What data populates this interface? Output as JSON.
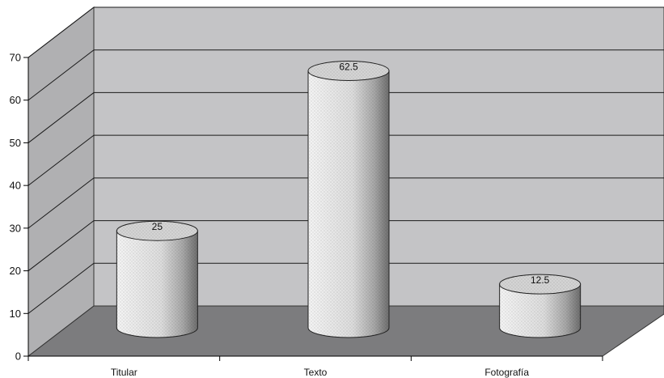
{
  "chart_data": {
    "type": "bar",
    "style": "3d-cylinder",
    "categories": [
      "Titular",
      "Texto",
      "Fotografía"
    ],
    "values": [
      25,
      62.5,
      12.5
    ],
    "data_labels": [
      "25",
      "62.5",
      "12.5"
    ],
    "ylim": [
      0,
      70
    ],
    "yticks": [
      0,
      10,
      20,
      30,
      40,
      50,
      60,
      70
    ],
    "title": "",
    "xlabel": "",
    "ylabel": "",
    "grid": true,
    "legend": "none",
    "colors": {
      "back_wall": "#c4c4c6",
      "side_wall": "#b0b0b2",
      "floor": "#7c7c7e",
      "gridline": "#1a1a1a",
      "bar_light": "#f4f4f4",
      "bar_dark": "#6e6e6e"
    }
  }
}
